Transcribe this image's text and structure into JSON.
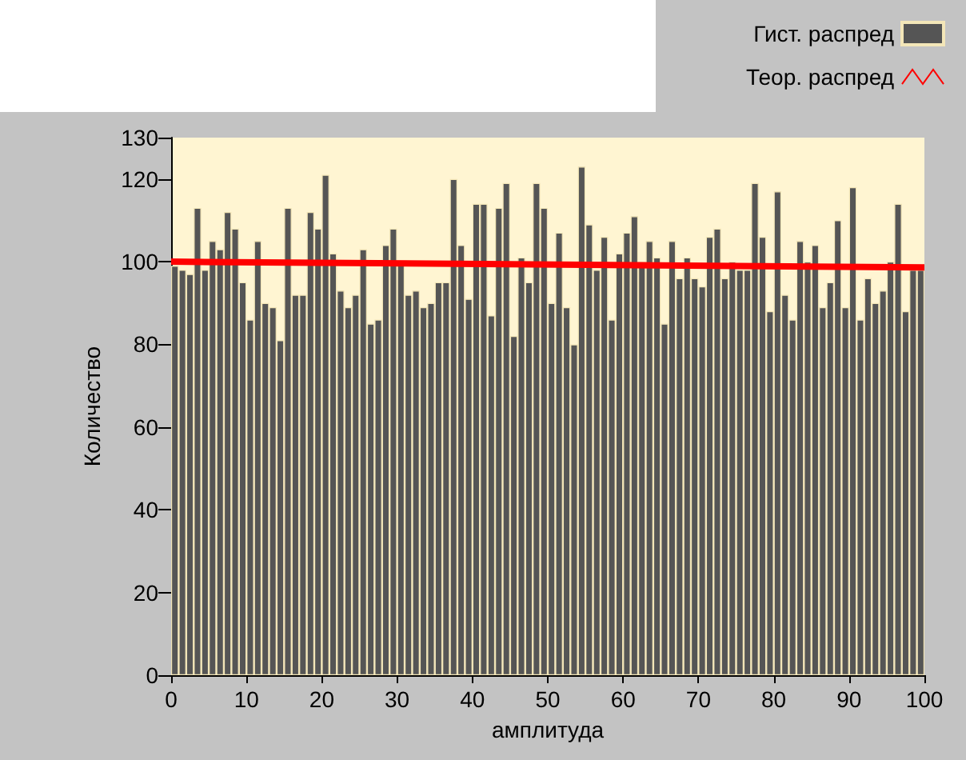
{
  "chart_data": {
    "type": "histogram",
    "xlabel": "амплитуда",
    "ylabel": "Количество",
    "bins": [
      0,
      1,
      2,
      3,
      4,
      5,
      6,
      7,
      8,
      9,
      10,
      11,
      12,
      13,
      14,
      15,
      16,
      17,
      18,
      19,
      20,
      21,
      22,
      23,
      24,
      25,
      26,
      27,
      28,
      29,
      30,
      31,
      32,
      33,
      34,
      35,
      36,
      37,
      38,
      39,
      40,
      41,
      42,
      43,
      44,
      45,
      46,
      47,
      48,
      49,
      50,
      51,
      52,
      53,
      54,
      55,
      56,
      57,
      58,
      59,
      60,
      61,
      62,
      63,
      64,
      65,
      66,
      67,
      68,
      69,
      70,
      71,
      72,
      73,
      74,
      75,
      76,
      77,
      78,
      79,
      80,
      81,
      82,
      83,
      84,
      85,
      86,
      87,
      88,
      89,
      90,
      91,
      92,
      93,
      94,
      95,
      96,
      97,
      98,
      99,
      100
    ],
    "series": [
      {
        "name": "Гист. распред",
        "color": "#555555",
        "values": [
          99,
          98,
          97,
          113,
          98,
          105,
          103,
          112,
          108,
          95,
          86,
          105,
          90,
          89,
          81,
          113,
          92,
          92,
          112,
          108,
          121,
          102,
          93,
          89,
          92,
          103,
          85,
          86,
          104,
          108,
          100,
          92,
          93,
          89,
          90,
          95,
          95,
          120,
          104,
          91,
          114,
          114,
          87,
          113,
          119,
          82,
          101,
          95,
          119,
          113,
          90,
          107,
          89,
          80,
          123,
          109,
          98,
          106,
          86,
          102,
          107,
          111,
          100,
          105,
          101,
          85,
          105,
          96,
          101,
          96,
          94,
          106,
          108,
          96,
          100,
          98,
          98,
          119,
          106,
          88,
          117,
          92,
          86,
          105,
          100,
          104,
          89,
          95,
          110,
          89,
          118,
          86,
          96,
          90,
          93,
          100,
          114,
          88,
          98,
          98
        ]
      },
      {
        "name": "Теор. распред",
        "type": "line",
        "color": "#ff0000",
        "x": [
          0,
          100
        ],
        "values": [
          100,
          98.6
        ]
      }
    ],
    "xlim": [
      0,
      100
    ],
    "xticks": [
      0,
      10,
      20,
      30,
      40,
      50,
      60,
      70,
      80,
      90,
      100
    ],
    "ylim": [
      0,
      130
    ],
    "yticks": [
      0,
      20,
      40,
      60,
      80,
      100,
      120,
      130
    ],
    "grid": false,
    "legend": "top right"
  }
}
